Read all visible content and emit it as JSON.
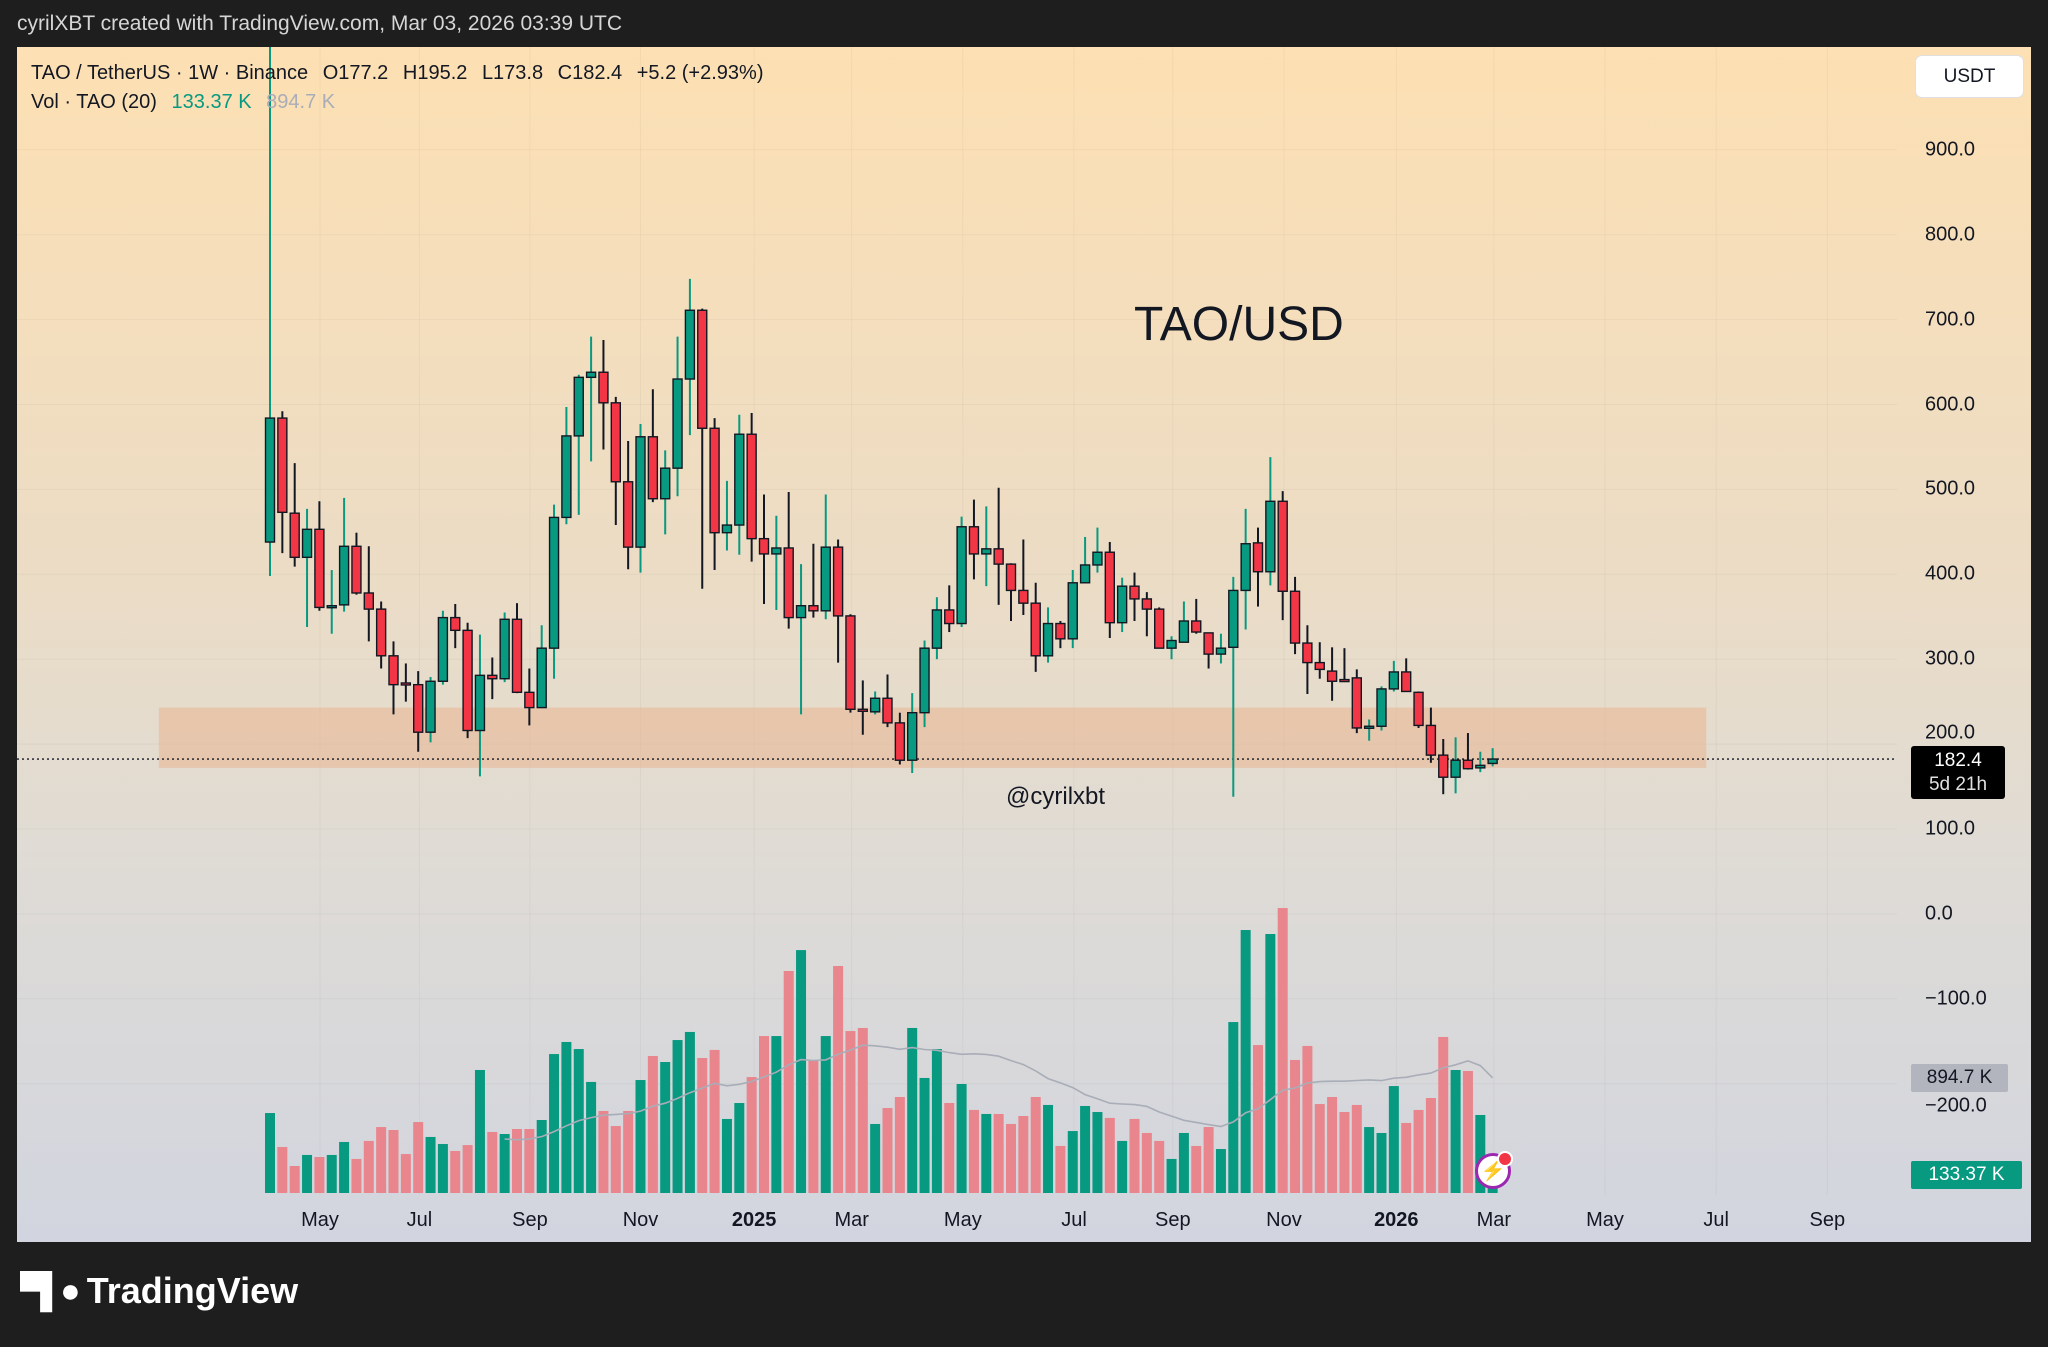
{
  "credit": "cyrilXBT created with TradingView.com, Mar 03, 2026 03:39 UTC",
  "legend": {
    "symbol": "TAO / TetherUS · 1W · Binance",
    "open": "O177.2",
    "high": "H195.2",
    "low": "L173.8",
    "close": "C182.4",
    "change": "+5.2 (+2.93%)",
    "vol_label": "Vol · TAO (20)",
    "vol_value": "133.37 K",
    "vol_ma": "894.7 K"
  },
  "currency_button": "USDT",
  "chart_title": "TAO/USD",
  "watermark": "@cyrilxbt",
  "last_price": {
    "value": "182.4",
    "countdown": "5d 21h"
  },
  "vol_ma_tag": "894.7 K",
  "vol_tag": "133.37 K",
  "brand": "TradingView",
  "colors": {
    "up": "#089981",
    "down": "#F23645",
    "vol_up": "#089981",
    "vol_down": "#e8858d",
    "zone": "#e8b896",
    "ma": "#a9adb8"
  },
  "price_axis": [
    {
      "label": "900.0",
      "value": 900
    },
    {
      "label": "800.0",
      "value": 800
    },
    {
      "label": "700.0",
      "value": 700
    },
    {
      "label": "600.0",
      "value": 600
    },
    {
      "label": "500.0",
      "value": 500
    },
    {
      "label": "400.0",
      "value": 400
    },
    {
      "label": "300.0",
      "value": 300
    },
    {
      "label": "200.0",
      "value": 200
    },
    {
      "label": "100.0",
      "value": 100
    },
    {
      "label": "0.0",
      "value": 0
    },
    {
      "label": "−100.0",
      "value": -100
    },
    {
      "label": "−200.0",
      "value": -200
    }
  ],
  "time_axis": [
    {
      "label": "May",
      "week": 4.05
    },
    {
      "label": "Jul",
      "week": 12.1
    },
    {
      "label": "Sep",
      "week": 21.05
    },
    {
      "label": "Nov",
      "week": 30.0
    },
    {
      "label": "2025",
      "week": 39.2,
      "bold": true
    },
    {
      "label": "Mar",
      "week": 47.1
    },
    {
      "label": "May",
      "week": 56.1
    },
    {
      "label": "Jul",
      "week": 65.1
    },
    {
      "label": "Sep",
      "week": 73.1
    },
    {
      "label": "Nov",
      "week": 82.1
    },
    {
      "label": "2026",
      "week": 91.2,
      "bold": true
    },
    {
      "label": "Mar",
      "week": 99.1
    },
    {
      "label": "May",
      "week": 108.1
    },
    {
      "label": "Jul",
      "week": 117.1
    },
    {
      "label": "Sep",
      "week": 126.1
    }
  ],
  "chart_data": {
    "type": "candlestick",
    "interval": "1W",
    "ohlc_fields": [
      "open",
      "high",
      "low",
      "close"
    ],
    "ohlc": [
      [
        438,
        1050,
        398,
        584
      ],
      [
        584,
        592,
        425,
        473
      ],
      [
        472,
        531,
        409,
        420
      ],
      [
        420,
        477,
        338,
        453
      ],
      [
        453,
        486,
        357,
        361
      ],
      [
        361,
        405,
        330,
        363
      ],
      [
        364,
        490,
        356,
        433
      ],
      [
        433,
        449,
        376,
        378
      ],
      [
        378,
        433,
        321,
        359
      ],
      [
        359,
        368,
        289,
        304
      ],
      [
        304,
        321,
        235,
        270
      ],
      [
        272,
        295,
        250,
        270
      ],
      [
        270,
        286,
        191,
        214
      ],
      [
        214,
        279,
        202,
        274
      ],
      [
        274,
        357,
        270,
        349
      ],
      [
        349,
        365,
        313,
        334
      ],
      [
        334,
        343,
        207,
        216
      ],
      [
        216,
        329,
        162,
        281
      ],
      [
        281,
        302,
        253,
        277
      ],
      [
        277,
        355,
        273,
        347
      ],
      [
        347,
        366,
        260,
        261
      ],
      [
        261,
        289,
        222,
        243
      ],
      [
        243,
        340,
        243,
        313
      ],
      [
        313,
        482,
        277,
        467
      ],
      [
        467,
        597,
        459,
        563
      ],
      [
        563,
        635,
        470,
        632
      ],
      [
        632,
        680,
        533,
        638
      ],
      [
        638,
        676,
        547,
        602
      ],
      [
        602,
        609,
        458,
        509
      ],
      [
        509,
        557,
        406,
        432
      ],
      [
        432,
        577,
        402,
        562
      ],
      [
        562,
        618,
        485,
        489
      ],
      [
        489,
        546,
        447,
        525
      ],
      [
        525,
        680,
        492,
        630
      ],
      [
        630,
        748,
        564,
        711
      ],
      [
        711,
        713,
        383,
        572
      ],
      [
        572,
        584,
        405,
        449
      ],
      [
        449,
        510,
        428,
        458
      ],
      [
        458,
        588,
        423,
        565
      ],
      [
        565,
        590,
        415,
        442
      ],
      [
        442,
        494,
        365,
        424
      ],
      [
        424,
        469,
        358,
        431
      ],
      [
        431,
        497,
        336,
        349
      ],
      [
        349,
        412,
        235,
        363
      ],
      [
        363,
        436,
        349,
        357
      ],
      [
        357,
        494,
        347,
        432
      ],
      [
        432,
        441,
        296,
        351
      ],
      [
        351,
        353,
        237,
        241
      ],
      [
        241,
        275,
        211,
        240
      ],
      [
        238,
        262,
        235,
        254
      ],
      [
        254,
        282,
        220,
        225
      ],
      [
        225,
        237,
        176,
        181
      ],
      [
        181,
        260,
        166,
        237
      ],
      [
        237,
        322,
        220,
        313
      ],
      [
        313,
        373,
        300,
        358
      ],
      [
        358,
        387,
        332,
        342
      ],
      [
        342,
        468,
        338,
        456
      ],
      [
        456,
        488,
        394,
        424
      ],
      [
        424,
        480,
        386,
        430
      ],
      [
        430,
        502,
        364,
        412
      ],
      [
        412,
        413,
        345,
        381
      ],
      [
        381,
        441,
        352,
        366
      ],
      [
        366,
        390,
        285,
        304
      ],
      [
        304,
        361,
        296,
        342
      ],
      [
        342,
        345,
        313,
        324
      ],
      [
        324,
        405,
        313,
        390
      ],
      [
        390,
        444,
        390,
        411
      ],
      [
        411,
        455,
        402,
        426
      ],
      [
        426,
        438,
        325,
        343
      ],
      [
        343,
        396,
        332,
        386
      ],
      [
        386,
        402,
        345,
        371
      ],
      [
        371,
        379,
        327,
        359
      ],
      [
        359,
        361,
        313,
        313
      ],
      [
        313,
        327,
        300,
        322
      ],
      [
        320,
        368,
        320,
        345
      ],
      [
        345,
        371,
        330,
        332
      ],
      [
        331,
        331,
        289,
        306
      ],
      [
        306,
        330,
        295,
        313
      ],
      [
        314,
        397,
        138,
        381
      ],
      [
        381,
        477,
        335,
        436
      ],
      [
        437,
        455,
        362,
        403
      ],
      [
        403,
        538,
        387,
        486
      ],
      [
        486,
        498,
        346,
        380
      ],
      [
        380,
        397,
        306,
        319
      ],
      [
        319,
        340,
        259,
        296
      ],
      [
        296,
        320,
        277,
        288
      ],
      [
        286,
        314,
        251,
        274
      ],
      [
        276,
        313,
        274,
        275
      ],
      [
        278,
        288,
        213,
        219
      ],
      [
        219,
        229,
        204,
        221
      ],
      [
        221,
        268,
        216,
        265
      ],
      [
        265,
        298,
        262,
        285
      ],
      [
        285,
        301,
        262,
        262
      ],
      [
        261,
        262,
        219,
        222
      ],
      [
        222,
        243,
        178,
        187
      ],
      [
        187,
        206,
        141,
        161
      ],
      [
        161,
        208,
        142,
        181
      ],
      [
        181,
        213,
        170,
        171
      ],
      [
        172,
        191,
        167,
        175
      ],
      [
        177.2,
        195.2,
        173.8,
        182.4
      ]
    ],
    "volume_k": [
      622,
      358,
      210,
      296,
      280,
      296,
      397,
      265,
      405,
      513,
      490,
      303,
      552,
      436,
      381,
      327,
      373,
      957,
      475,
      459,
      498,
      498,
      568,
      1081,
      1175,
      1120,
      864,
      638,
      521,
      638,
      879,
      1066,
      1019,
      1190,
      1253,
      1050,
      1113,
      576,
      700,
      902,
      1221,
      1221,
      1727,
      1890,
      1027,
      1221,
      1766,
      1260,
      1284,
      537,
      661,
      747,
      1284,
      895,
      1120,
      700,
      848,
      646,
      615,
      615,
      537,
      599,
      747,
      685,
      366,
      482,
      677,
      630,
      584,
      405,
      576,
      467,
      405,
      265,
      467,
      366,
      513,
      342,
      1330,
      2046,
      1151,
      2015,
      2217,
      1035,
      1144,
      692,
      747,
      630,
      685,
      513,
      467,
      832,
      545,
      646,
      739,
      1214,
      957,
      949,
      607,
      133.37
    ],
    "volume_ma_period": 20,
    "zone": {
      "price_low": 172,
      "price_high": 243,
      "from_week": -9,
      "to_week": 116.3
    },
    "last_price_line": 182.4,
    "y_range": [
      -220,
      1000
    ]
  }
}
